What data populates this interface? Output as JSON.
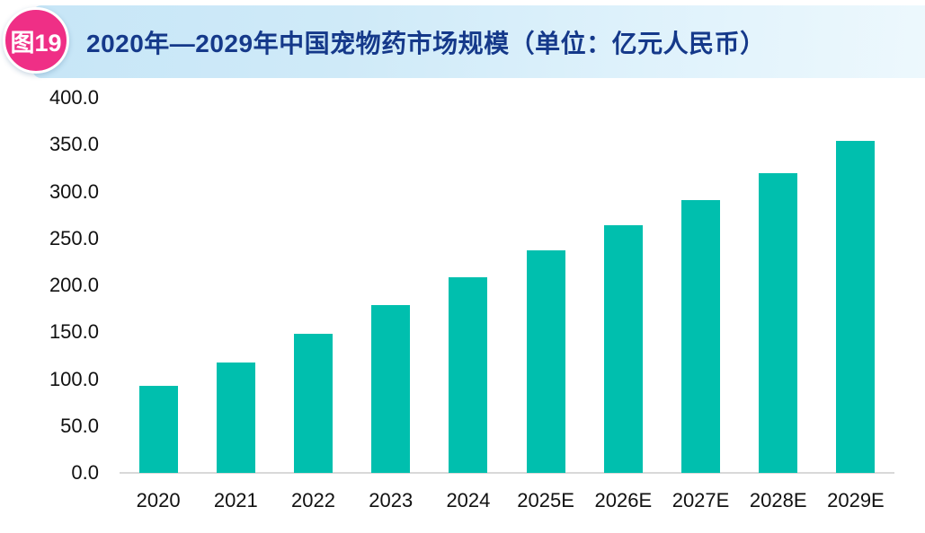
{
  "badge": {
    "label": "图19"
  },
  "header": {
    "title": "2020年—2029年中国宠物药市场规模（单位：亿元人民币）"
  },
  "colors": {
    "badge_pink": "#ef2f86",
    "title_navy": "#15398a",
    "ribbon_gradient_start": "#c7e6f7",
    "ribbon_gradient_end": "#edf8fd",
    "bar_teal": "#00bfae",
    "axis_line_gray": "#d9d9d9",
    "tick_text": "#111111"
  },
  "chart_data": {
    "type": "bar",
    "title": "2020年—2029年中国宠物药市场规模（单位：亿元人民币）",
    "categories": [
      "2020",
      "2021",
      "2022",
      "2023",
      "2024",
      "2025E",
      "2026E",
      "2027E",
      "2028E",
      "2029E"
    ],
    "values": [
      93,
      118,
      148,
      179,
      209,
      237,
      264,
      291,
      320,
      354
    ],
    "xlabel": "",
    "ylabel": "亿元人民币",
    "ylim": [
      0,
      400
    ],
    "yticks": [
      {
        "value": 0,
        "label": "0.0"
      },
      {
        "value": 50,
        "label": "50.0"
      },
      {
        "value": 100,
        "label": "100.0"
      },
      {
        "value": 150,
        "label": "150.0"
      },
      {
        "value": 200,
        "label": "200.0"
      },
      {
        "value": 250,
        "label": "250.0"
      },
      {
        "value": 300,
        "label": "300.0"
      },
      {
        "value": 350,
        "label": "350.0"
      },
      {
        "value": 400,
        "label": "400.0"
      }
    ],
    "grid": false,
    "legend": false,
    "bar_color": "#00bfae"
  }
}
